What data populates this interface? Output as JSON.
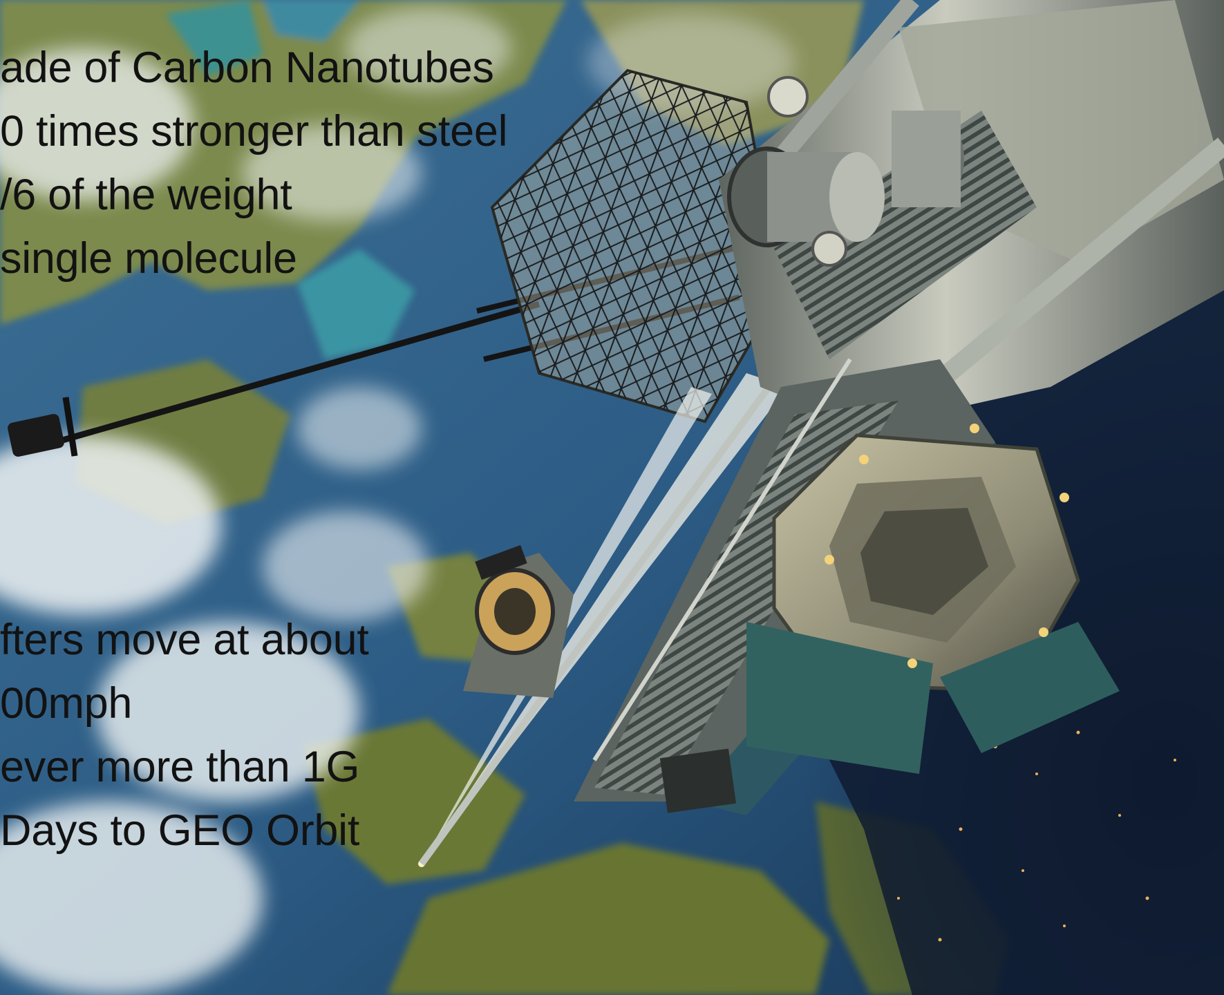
{
  "captions": {
    "material": {
      "lines": [
        "ade of Carbon Nanotubes",
        "0 times stronger than steel",
        "/6 of the weight",
        " single molecule"
      ]
    },
    "lifters": {
      "lines": [
        "fters move at about",
        "00mph",
        "ever more than 1G",
        " Days to GEO Orbit"
      ]
    }
  },
  "palette": {
    "ocean": "#2b5680",
    "land": "#6f7d3a",
    "cloud": "#eef2f3",
    "space": "#0d1a2e",
    "hull": "#8d9289",
    "hull_dark": "#3c4340",
    "text": "#121212"
  }
}
